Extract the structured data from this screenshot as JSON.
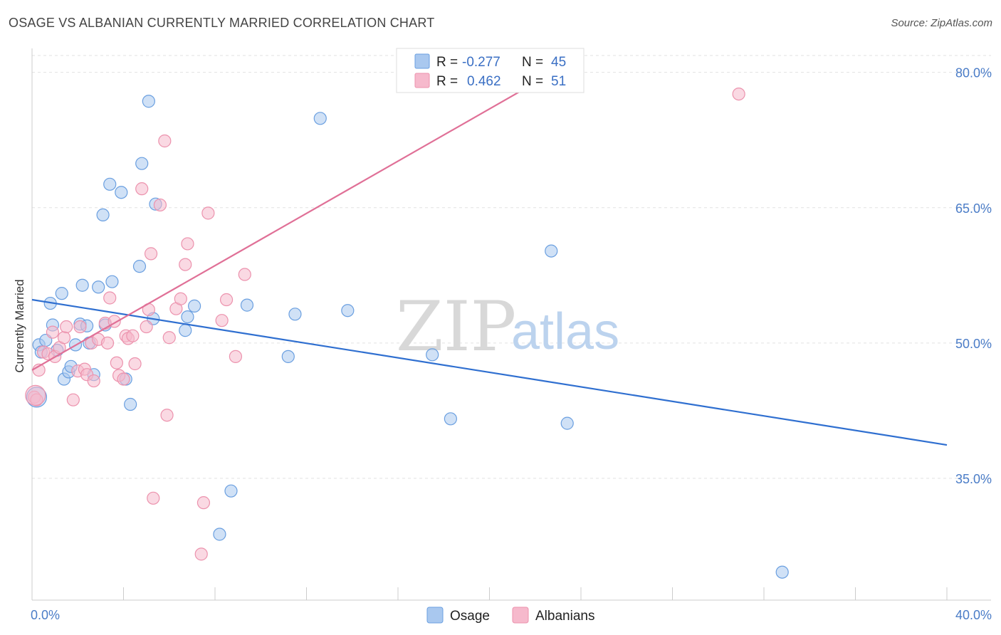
{
  "header": {
    "title": "OSAGE VS ALBANIAN CURRENTLY MARRIED CORRELATION CHART",
    "source": "Source: ZipAtlas.com"
  },
  "watermark": {
    "zip": "ZIP",
    "atlas": "atlas"
  },
  "legend": {
    "rows": [
      {
        "r_label": "R =",
        "r_value": "-0.277",
        "n_label": "N =",
        "n_value": "45",
        "color": "#a9c8ef"
      },
      {
        "r_label": "R =",
        "r_value": " 0.462",
        "n_label": "N =",
        "n_value": "51",
        "color": "#f6b9cc"
      }
    ]
  },
  "bottom_legend": {
    "items": [
      {
        "label": "Osage",
        "color": "#a9c8ef"
      },
      {
        "label": "Albanians",
        "color": "#f6b9cc"
      }
    ]
  },
  "chart_data": {
    "type": "scatter",
    "title": "OSAGE VS ALBANIAN CURRENTLY MARRIED CORRELATION CHART",
    "xlabel": "",
    "ylabel": "Currently Married",
    "xlim": [
      0,
      40
    ],
    "ylim": [
      21.5,
      82.5
    ],
    "x_tick_labels": [
      "0.0%",
      "40.0%"
    ],
    "y_ticks": [
      35,
      50,
      65,
      80
    ],
    "y_tick_labels": [
      "35.0%",
      "50.0%",
      "65.0%",
      "80.0%"
    ],
    "grid": true,
    "series": [
      {
        "name": "Osage",
        "color": "#6a9fe0",
        "fill": "#a9c8ef",
        "line_color": "#2f6fd0",
        "trend": {
          "x": [
            0,
            40
          ],
          "y": [
            54.8,
            38.7
          ]
        },
        "points": [
          [
            0.3,
            49.8
          ],
          [
            0.4,
            49.0
          ],
          [
            0.6,
            50.3
          ],
          [
            0.8,
            54.4
          ],
          [
            0.9,
            52.0
          ],
          [
            1.1,
            49.2
          ],
          [
            1.3,
            55.5
          ],
          [
            1.4,
            46.0
          ],
          [
            1.6,
            46.8
          ],
          [
            1.7,
            47.4
          ],
          [
            1.9,
            49.8
          ],
          [
            2.1,
            52.1
          ],
          [
            2.2,
            56.4
          ],
          [
            2.4,
            51.9
          ],
          [
            2.5,
            50.0
          ],
          [
            2.7,
            46.5
          ],
          [
            2.9,
            56.2
          ],
          [
            3.1,
            64.2
          ],
          [
            3.2,
            52.0
          ],
          [
            3.4,
            67.6
          ],
          [
            3.5,
            56.8
          ],
          [
            3.9,
            66.7
          ],
          [
            4.1,
            46.0
          ],
          [
            4.3,
            43.2
          ],
          [
            4.7,
            58.5
          ],
          [
            4.8,
            69.9
          ],
          [
            5.1,
            76.8
          ],
          [
            5.3,
            52.7
          ],
          [
            5.4,
            65.4
          ],
          [
            6.7,
            51.4
          ],
          [
            6.8,
            52.9
          ],
          [
            7.1,
            54.1
          ],
          [
            8.2,
            28.8
          ],
          [
            8.7,
            33.6
          ],
          [
            9.4,
            54.2
          ],
          [
            11.2,
            48.5
          ],
          [
            11.5,
            53.2
          ],
          [
            12.6,
            74.9
          ],
          [
            13.8,
            53.6
          ],
          [
            17.5,
            48.7
          ],
          [
            18.3,
            41.6
          ],
          [
            22.7,
            60.2
          ],
          [
            23.4,
            41.1
          ],
          [
            32.8,
            24.6
          ],
          [
            0.2,
            44.0
          ]
        ]
      },
      {
        "name": "Albanians",
        "color": "#ec92ad",
        "fill": "#f6b9cc",
        "line_color": "#e07097",
        "trend": {
          "x": [
            0,
            40
          ],
          "y": [
            47.0,
            104.9
          ]
        },
        "points": [
          [
            0.1,
            44.0
          ],
          [
            0.2,
            43.7
          ],
          [
            0.3,
            47.0
          ],
          [
            0.5,
            49.0
          ],
          [
            0.7,
            48.8
          ],
          [
            0.9,
            51.2
          ],
          [
            1.0,
            48.5
          ],
          [
            1.2,
            49.5
          ],
          [
            1.4,
            50.6
          ],
          [
            1.5,
            51.8
          ],
          [
            1.8,
            43.7
          ],
          [
            2.0,
            46.9
          ],
          [
            2.1,
            51.8
          ],
          [
            2.3,
            47.1
          ],
          [
            2.4,
            46.5
          ],
          [
            2.6,
            50.0
          ],
          [
            2.7,
            45.8
          ],
          [
            2.9,
            50.4
          ],
          [
            3.2,
            52.2
          ],
          [
            3.3,
            50.0
          ],
          [
            3.4,
            55.0
          ],
          [
            3.6,
            52.4
          ],
          [
            3.7,
            47.8
          ],
          [
            3.8,
            46.4
          ],
          [
            4.0,
            46.0
          ],
          [
            4.1,
            50.8
          ],
          [
            4.2,
            50.5
          ],
          [
            4.4,
            50.8
          ],
          [
            4.5,
            47.7
          ],
          [
            4.8,
            67.1
          ],
          [
            5.0,
            51.8
          ],
          [
            5.1,
            53.7
          ],
          [
            5.2,
            59.9
          ],
          [
            5.3,
            32.8
          ],
          [
            5.6,
            65.3
          ],
          [
            5.8,
            72.4
          ],
          [
            5.9,
            42.0
          ],
          [
            6.0,
            50.6
          ],
          [
            6.3,
            53.8
          ],
          [
            6.5,
            54.9
          ],
          [
            6.7,
            58.7
          ],
          [
            6.8,
            61.0
          ],
          [
            7.4,
            26.6
          ],
          [
            7.5,
            32.3
          ],
          [
            7.7,
            64.4
          ],
          [
            8.3,
            52.5
          ],
          [
            8.5,
            54.8
          ],
          [
            8.9,
            48.5
          ],
          [
            9.3,
            57.6
          ],
          [
            30.9,
            77.6
          ],
          [
            0.15,
            44.2
          ]
        ]
      }
    ]
  }
}
